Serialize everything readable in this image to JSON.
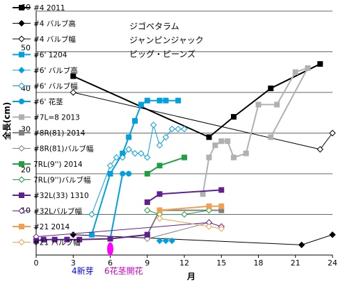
{
  "chart_data": {
    "type": "line",
    "xlabel": "月",
    "ylabel": "全長(cm)",
    "xlim": [
      0,
      24
    ],
    "ylim": [
      0,
      60
    ],
    "x_ticks": [
      0,
      3,
      6,
      9,
      12,
      15,
      18,
      21,
      24
    ],
    "y_ticks": [
      10,
      20,
      30,
      40,
      50,
      60
    ],
    "grid": "horizontal",
    "legend_position": "left",
    "notes": [
      "ジゴペタラム",
      "ジャンピンジャック",
      "ビッグ・ビーンズ"
    ],
    "annotations": [
      {
        "text": "4新芽",
        "x": 4.0,
        "color": "#0000ff"
      },
      {
        "text": "6花茎開花",
        "x": 6.0,
        "color": "#cc00cc"
      }
    ],
    "series": [
      {
        "name": "#4 2011",
        "color": "#000000",
        "marker": "square",
        "fill": true,
        "width": 2,
        "points": [
          [
            3,
            44
          ],
          [
            14,
            29
          ],
          [
            16,
            34
          ],
          [
            19,
            41
          ],
          [
            23,
            47
          ]
        ]
      },
      {
        "name": "#4 バルブ高",
        "color": "#000000",
        "marker": "diamond",
        "fill": true,
        "width": 1,
        "points": [
          [
            3,
            5
          ],
          [
            21.5,
            2.5
          ],
          [
            24,
            5
          ]
        ]
      },
      {
        "name": "#4 バルブ幅",
        "color": "#000000",
        "marker": "diamond",
        "fill": false,
        "width": 1,
        "points": [
          [
            3,
            40
          ],
          [
            23,
            26
          ],
          [
            24,
            30
          ]
        ]
      },
      {
        "name": "#6' 1204",
        "color": "#00a0e0",
        "marker": "square",
        "fill": true,
        "width": 2,
        "points": [
          [
            4.5,
            5
          ],
          [
            6,
            20
          ],
          [
            7,
            25
          ],
          [
            7.5,
            29
          ],
          [
            8,
            33
          ],
          [
            8.5,
            37
          ],
          [
            9,
            38
          ],
          [
            10,
            38
          ],
          [
            10.5,
            38
          ],
          [
            11.5,
            38
          ]
        ]
      },
      {
        "name": "#6' バルブ高",
        "color": "#00a0e0",
        "marker": "diamond",
        "fill": true,
        "width": 1,
        "points": [
          [
            10,
            3.5
          ],
          [
            10.5,
            3.5
          ],
          [
            11,
            3.5
          ]
        ]
      },
      {
        "name": "#6' バルブ幅",
        "color": "#00a0e0",
        "marker": "diamond",
        "fill": false,
        "width": 1,
        "points": [
          [
            4.5,
            10
          ],
          [
            6,
            22
          ],
          [
            6.5,
            24
          ],
          [
            7,
            24
          ],
          [
            7.5,
            26
          ],
          [
            8,
            25
          ],
          [
            8.5,
            25
          ],
          [
            9,
            24
          ],
          [
            9.5,
            32
          ],
          [
            10,
            27
          ],
          [
            10.5,
            29
          ],
          [
            11,
            31
          ],
          [
            11.5,
            31
          ],
          [
            12,
            31
          ]
        ]
      },
      {
        "name": "#6' 花茎",
        "color": "#00a0e0",
        "marker": "circle",
        "fill": true,
        "width": 2,
        "points": [
          [
            6,
            4
          ],
          [
            7,
            20
          ],
          [
            7.5,
            20
          ]
        ]
      },
      {
        "name": "#7L=8 2013",
        "color": "#b0b0b0",
        "marker": "square",
        "fill": true,
        "width": 2,
        "points": [
          [
            13.5,
            15
          ],
          [
            14,
            24
          ],
          [
            14.5,
            27
          ],
          [
            15,
            28
          ],
          [
            15.5,
            28
          ],
          [
            16,
            24
          ],
          [
            17,
            25
          ],
          [
            18,
            37
          ],
          [
            19.5,
            37
          ],
          [
            21,
            45
          ],
          [
            22,
            46
          ],
          [
            19,
            29
          ]
        ]
      },
      {
        "name": "#8R(81) 2014",
        "color": "#808080",
        "marker": "square",
        "fill": true,
        "width": 2,
        "points": [
          [
            9,
            5
          ],
          [
            10,
            11
          ],
          [
            15,
            11
          ]
        ]
      },
      {
        "name": "#8R(81)バルブ幅",
        "color": "#808080",
        "marker": "diamond",
        "fill": false,
        "width": 1,
        "points": [
          [
            9,
            4
          ],
          [
            14,
            8
          ],
          [
            15,
            7
          ]
        ]
      },
      {
        "name": "7RL(9'') 2014",
        "color": "#20a040",
        "marker": "square",
        "fill": true,
        "width": 2,
        "points": [
          [
            9,
            20
          ],
          [
            10,
            22
          ],
          [
            12,
            24
          ]
        ]
      },
      {
        "name": "7RL(9'')バルブ幅",
        "color": "#20a040",
        "marker": "diamond",
        "fill": false,
        "width": 1,
        "points": [
          [
            9,
            11
          ],
          [
            10,
            10
          ],
          [
            12,
            10
          ],
          [
            14,
            11
          ]
        ]
      },
      {
        "name": "#32L(33) 1310",
        "color": "#602090",
        "marker": "square",
        "fill": true,
        "width": 2,
        "points": [
          [
            9,
            13
          ],
          [
            10,
            15
          ],
          [
            15,
            16
          ]
        ]
      },
      {
        "name": "#32Lバルブ幅",
        "color": "#602090",
        "marker": "diamond",
        "fill": false,
        "width": 1,
        "points": [
          [
            0,
            4.5
          ],
          [
            14,
            8
          ],
          [
            15,
            7
          ]
        ]
      },
      {
        "name": "#21 2014",
        "color": "#f0a050",
        "marker": "square",
        "fill": true,
        "width": 2,
        "points": [
          [
            10,
            11
          ],
          [
            14,
            12
          ],
          [
            15,
            12
          ]
        ]
      },
      {
        "name": "#21 バルブ幅",
        "color": "#f0a050",
        "marker": "diamond",
        "fill": false,
        "width": 1,
        "points": [
          [
            10,
            9
          ],
          [
            14,
            7
          ],
          [
            15,
            6.5
          ]
        ]
      },
      {
        "name": "",
        "color": "#602090",
        "marker": "square",
        "fill": true,
        "width": 2,
        "points": [
          [
            0,
            3.5
          ],
          [
            0.6,
            3.8
          ],
          [
            1.5,
            3.8
          ],
          [
            2.5,
            3.8
          ],
          [
            3.5,
            3.8
          ],
          [
            6,
            4
          ],
          [
            9,
            5
          ]
        ]
      },
      {
        "name": "",
        "color": "#ff00ff",
        "marker": "ellipse",
        "fill": true,
        "width": 0,
        "points": [
          [
            6,
            1.5
          ]
        ]
      }
    ]
  }
}
